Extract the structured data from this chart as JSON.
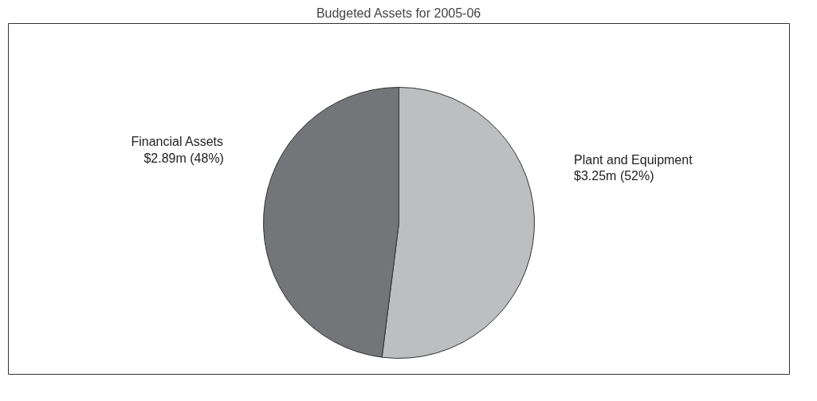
{
  "chart_data": {
    "type": "pie",
    "title": "Budgeted Assets for 2005-06",
    "categories": [
      "Plant and Equipment",
      "Financial Assets"
    ],
    "values": [
      52,
      48
    ],
    "value_labels": [
      "$3.25m (52%)",
      "$2.89m (48%)"
    ],
    "colors": [
      "#bdbec0",
      "#737578"
    ]
  }
}
